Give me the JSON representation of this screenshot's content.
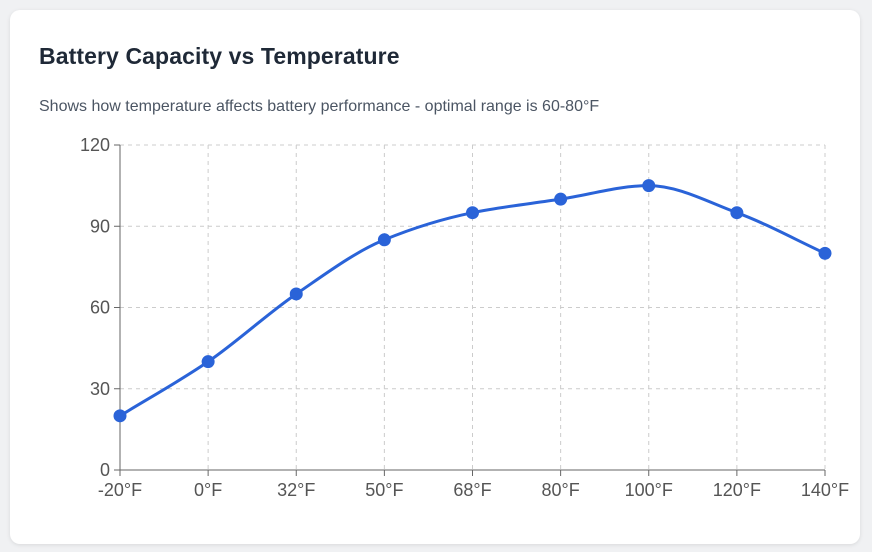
{
  "card": {
    "title": "Battery Capacity vs Temperature",
    "subtitle": "Shows how temperature affects battery performance - optimal range is 60-80°F"
  },
  "colors": {
    "line": "#2a63d8",
    "grid": "#cccccc",
    "axis": "#666666"
  },
  "chart_data": {
    "type": "line",
    "title": "Battery Capacity vs Temperature",
    "subtitle": "Shows how temperature affects battery performance - optimal range is 60-80°F",
    "categories": [
      "-20°F",
      "0°F",
      "32°F",
      "50°F",
      "68°F",
      "80°F",
      "100°F",
      "120°F",
      "140°F"
    ],
    "series": [
      {
        "values": [
          20,
          40,
          65,
          85,
          95,
          100,
          105,
          95,
          80
        ]
      }
    ],
    "yticks": [
      0,
      30,
      60,
      90,
      120
    ],
    "ylim": [
      0,
      120
    ],
    "grid": true,
    "smooth": true,
    "markers": true
  }
}
